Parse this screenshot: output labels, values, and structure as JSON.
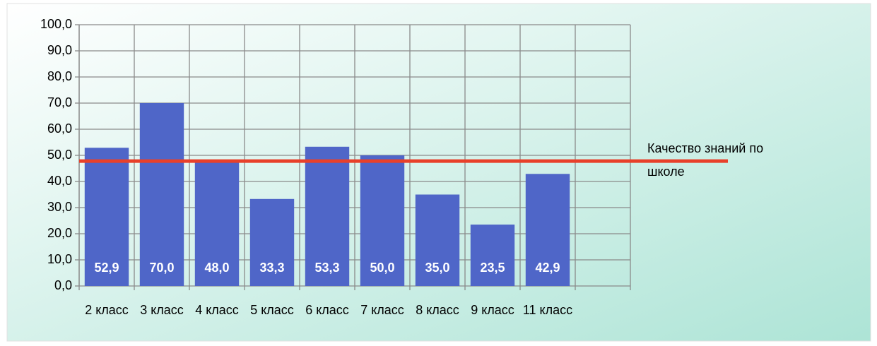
{
  "chart_data": {
    "type": "bar",
    "categories": [
      "2 класс",
      "3 класс",
      "4 класс",
      "5 класс",
      "6 класс",
      "7 класс",
      "8 класс",
      "9 класс",
      "11 класс",
      null
    ],
    "values": [
      52.9,
      70.0,
      48.0,
      33.3,
      53.3,
      50.0,
      35.0,
      23.5,
      42.9,
      null
    ],
    "value_labels": [
      "52,9",
      "70,0",
      "48,0",
      "33,3",
      "53,3",
      "50,0",
      "35,0",
      "23,5",
      "42,9",
      null
    ],
    "color": "#4f66c8",
    "reference_line": {
      "name": "Качество знаний по школе",
      "value": 47.8,
      "color": "#e8402a"
    },
    "ylim": [
      0,
      100
    ],
    "yticks": [
      {
        "value": 0,
        "label": "0,0"
      },
      {
        "value": 10,
        "label": "10,0"
      },
      {
        "value": 20,
        "label": "20,0"
      },
      {
        "value": 30,
        "label": "30,0"
      },
      {
        "value": 40,
        "label": "40,0"
      },
      {
        "value": 50,
        "label": "50,0"
      },
      {
        "value": 60,
        "label": "60,0"
      },
      {
        "value": 70,
        "label": "70,0"
      },
      {
        "value": 80,
        "label": "80,0"
      },
      {
        "value": 90,
        "label": "90,0"
      },
      {
        "value": 100,
        "label": "100,0"
      }
    ],
    "grid": true
  }
}
